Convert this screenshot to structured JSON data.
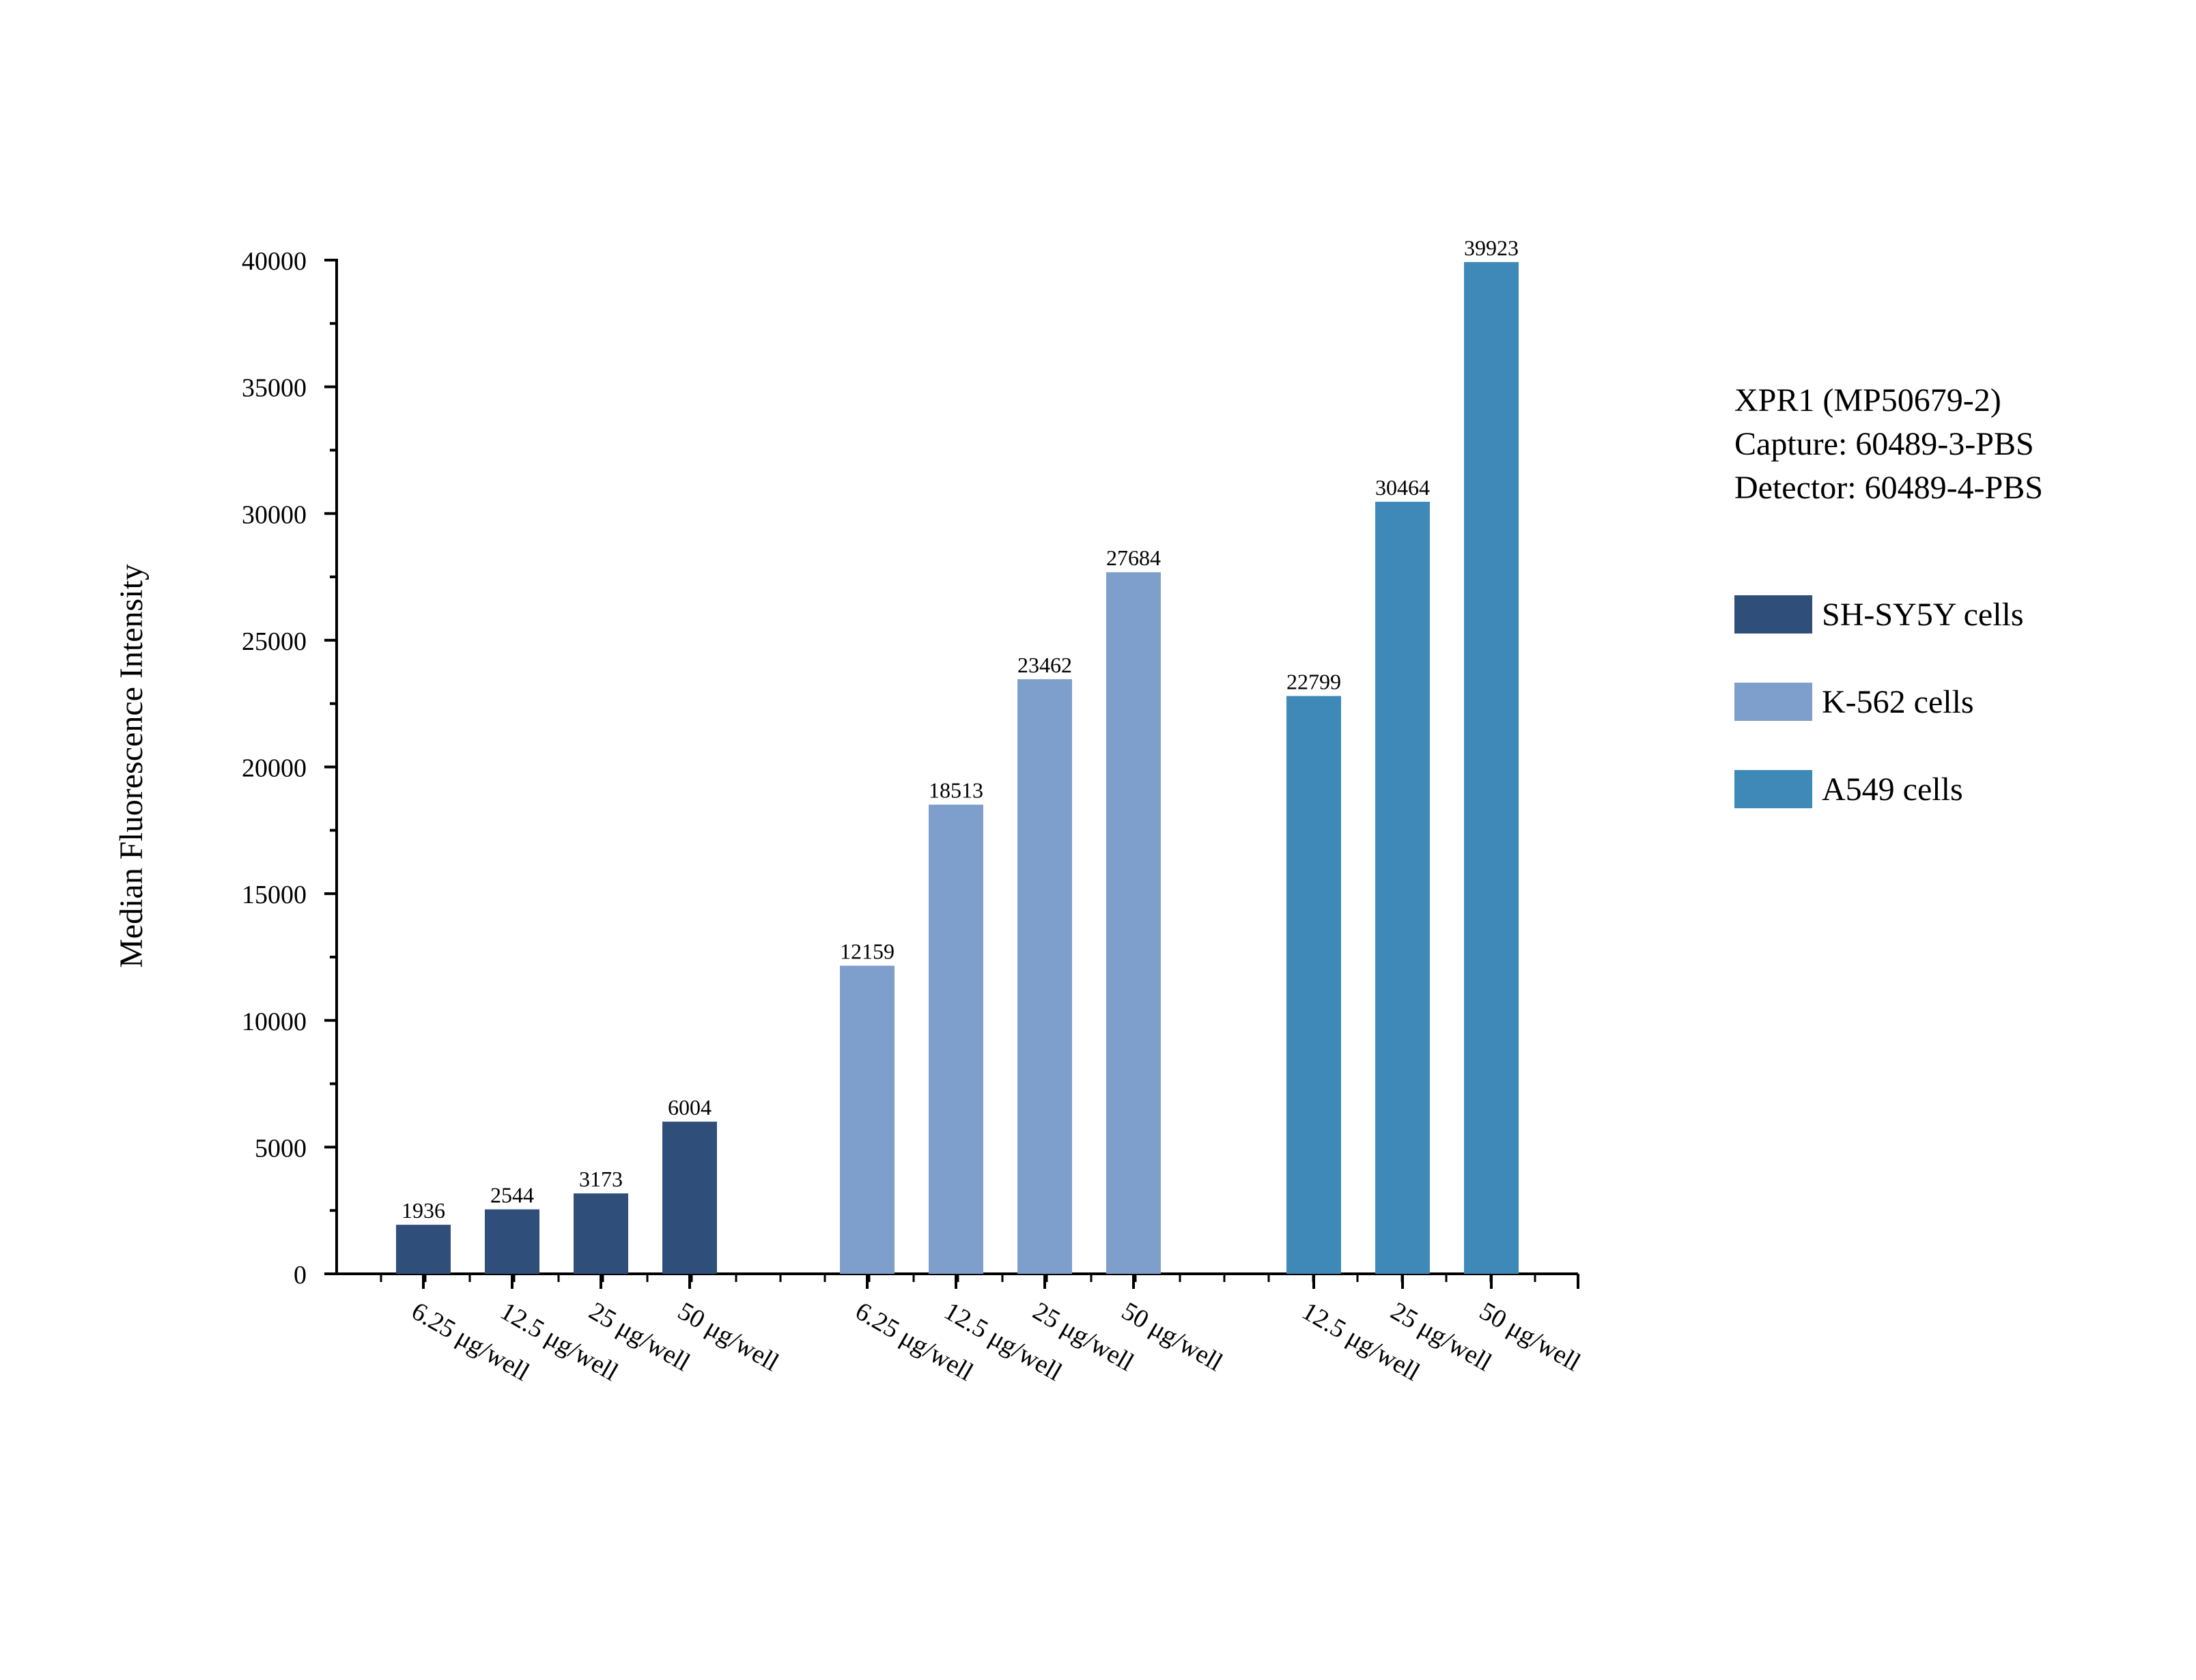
{
  "chart_data": {
    "type": "bar",
    "ylabel": "Median Fluorescence Intensity",
    "xlabel": "",
    "ylim": [
      0,
      40000
    ],
    "yticks": [
      0,
      5000,
      10000,
      15000,
      20000,
      25000,
      30000,
      35000,
      40000
    ],
    "annotation_lines": [
      "XPR1 (MP50679-2)",
      "Capture: 60489-3-PBS",
      "Detector: 60489-4-PBS"
    ],
    "legend_position": "right",
    "series": [
      {
        "name": "SH-SY5Y cells",
        "color": "#2f4f7a",
        "categories": [
          "6.25 μg/well",
          "12.5 μg/well",
          "25 μg/well",
          "50 μg/well"
        ],
        "values": [
          1936,
          2544,
          3173,
          6004
        ]
      },
      {
        "name": "K-562 cells",
        "color": "#7e9fcb",
        "categories": [
          "6.25 μg/well",
          "12.5 μg/well",
          "25 μg/well",
          "50 μg/well"
        ],
        "values": [
          12159,
          18513,
          23462,
          27684
        ]
      },
      {
        "name": "A549 cells",
        "color": "#3e89b8",
        "categories": [
          "12.5 μg/well",
          "25 μg/well",
          "50 μg/well"
        ],
        "values": [
          22799,
          30464,
          39923
        ]
      }
    ]
  }
}
